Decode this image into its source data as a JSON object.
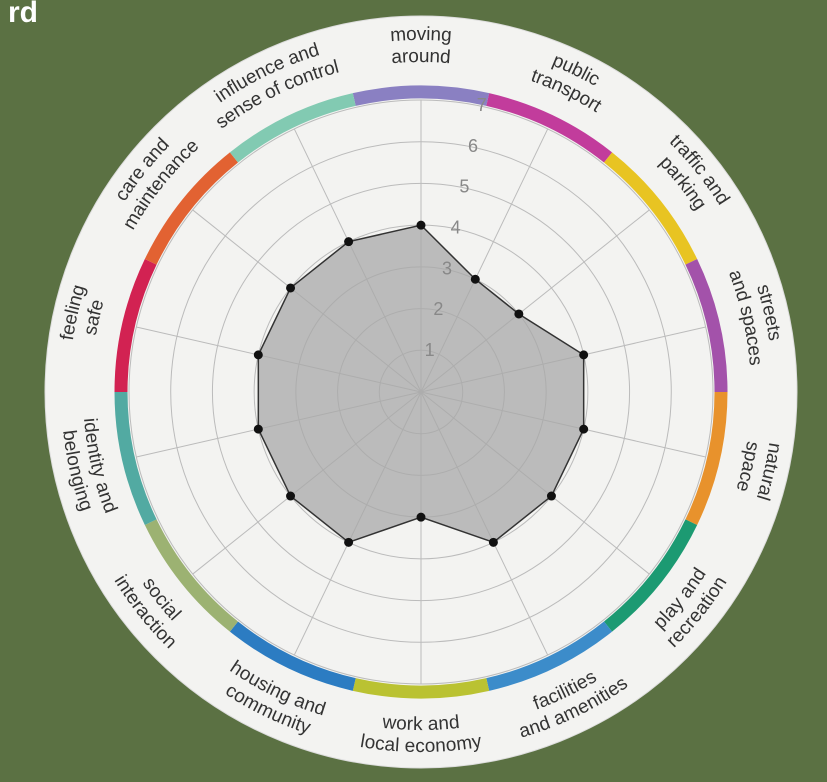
{
  "corner_text": "rd",
  "chart_data": {
    "type": "radar",
    "categories": [
      [
        "moving",
        "around"
      ],
      [
        "public",
        "transport"
      ],
      [
        "traffic and",
        "parking"
      ],
      [
        "streets",
        "and spaces"
      ],
      [
        "natural",
        "space"
      ],
      [
        "play and",
        "recreation"
      ],
      [
        "facilities",
        "and amenities"
      ],
      [
        "work and",
        "local economy"
      ],
      [
        "housing and",
        "community"
      ],
      [
        "social",
        "interaction"
      ],
      [
        "identity and",
        "belonging"
      ],
      [
        "feeling",
        "safe"
      ],
      [
        "care and",
        "maintenance"
      ],
      [
        "influence and",
        "sense of control"
      ]
    ],
    "values": [
      4,
      3,
      3,
      4,
      4,
      4,
      4,
      3,
      4,
      4,
      4,
      4,
      4,
      4
    ],
    "colors": [
      "#8a80c2",
      "#c23c9c",
      "#e8c422",
      "#a352aa",
      "#e8922c",
      "#1c9a72",
      "#3c8cca",
      "#bac232",
      "#2c7cc2",
      "#9cb272",
      "#52aaa2",
      "#d22252",
      "#e26232",
      "#82cab2"
    ],
    "fill": "#a8a8a8",
    "rlim": [
      0,
      7
    ],
    "rticks": [
      1,
      2,
      3,
      4,
      5,
      6,
      7
    ],
    "grid": true
  }
}
